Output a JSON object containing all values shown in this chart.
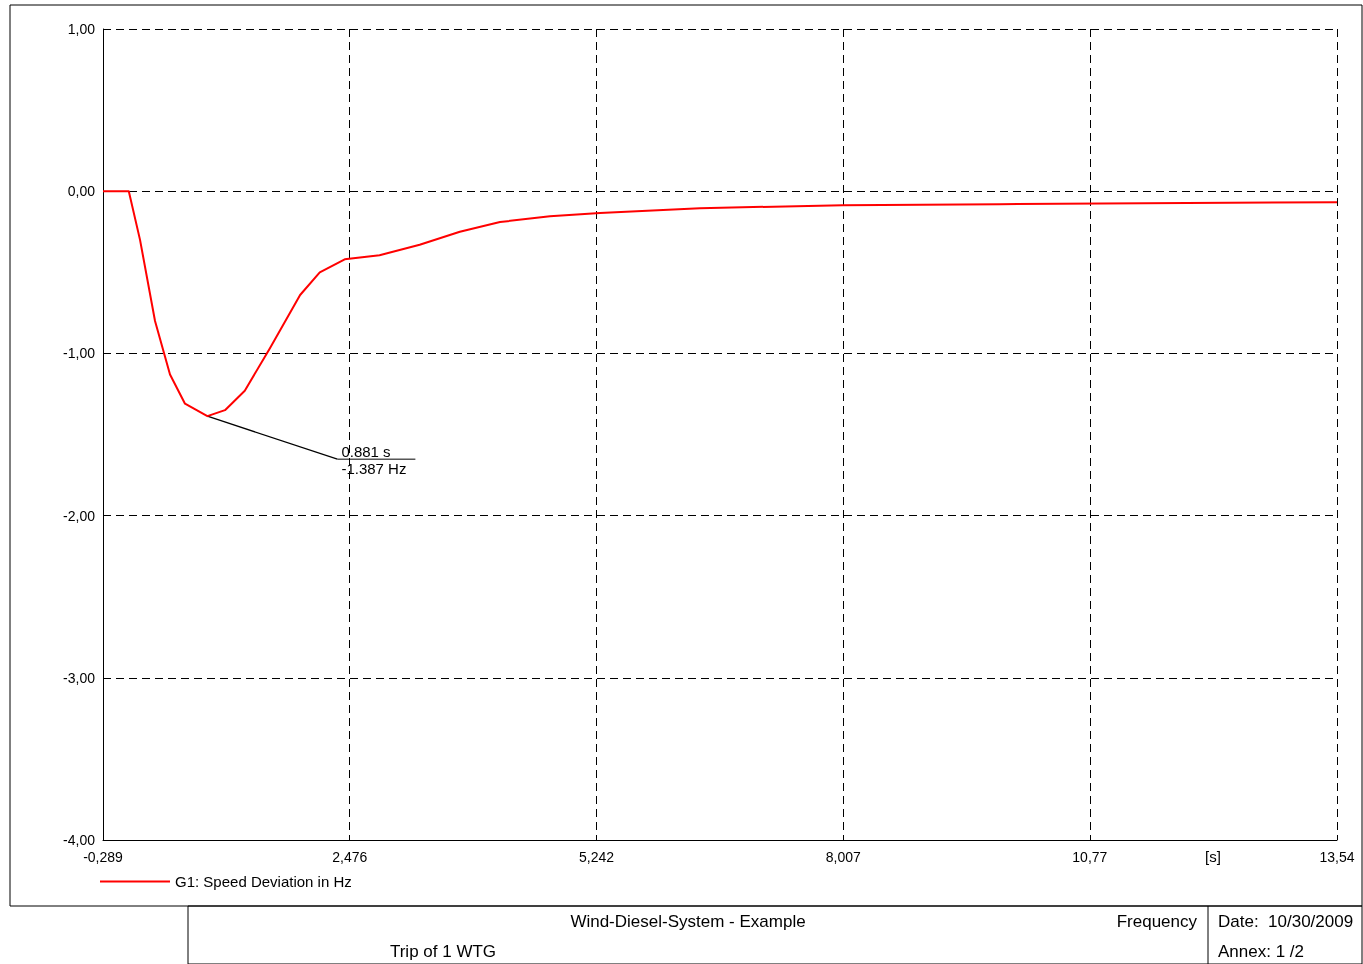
{
  "chart_data": {
    "type": "line",
    "title": "Wind-Diesel-System - Example",
    "subtitle": "Trip of 1 WTG",
    "xlabel": "[s]",
    "x": [
      -0.289,
      0.0,
      0.126,
      0.294,
      0.462,
      0.63,
      0.881,
      1.078,
      1.3,
      1.58,
      1.92,
      2.14,
      2.42,
      2.81,
      3.26,
      3.71,
      4.16,
      4.72,
      5.28,
      6.4,
      8.0,
      9.76,
      13.54
    ],
    "series": [
      {
        "name": "G1: Speed Deviation in Hz",
        "color": "#ff0000",
        "values": [
          0,
          0,
          -0.3,
          -0.8,
          -1.13,
          -1.31,
          -1.387,
          -1.35,
          -1.23,
          -0.97,
          -0.64,
          -0.5,
          -0.42,
          -0.395,
          -0.33,
          -0.25,
          -0.19,
          -0.155,
          -0.135,
          -0.105,
          -0.086,
          -0.08,
          -0.068
        ]
      }
    ],
    "xlim": [
      -0.289,
      13.54
    ],
    "xticks": [
      {
        "value": -0.289,
        "label": "-0,289"
      },
      {
        "value": 2.476,
        "label": "2,476"
      },
      {
        "value": 5.242,
        "label": "5,242"
      },
      {
        "value": 8.007,
        "label": "8,007"
      },
      {
        "value": 10.77,
        "label": "10,77"
      },
      {
        "value": 13.54,
        "label": "13,54"
      }
    ],
    "ylim": [
      -4,
      1
    ],
    "yticks": [
      {
        "value": -4,
        "label": "-4,00"
      },
      {
        "value": -3,
        "label": "-3,00"
      },
      {
        "value": -2,
        "label": "-2,00"
      },
      {
        "value": -1,
        "label": "-1,00"
      },
      {
        "value": 0,
        "label": "0,00"
      },
      {
        "value": 1,
        "label": "1,00"
      }
    ],
    "grid": true,
    "line_style": "solid",
    "marker": "none",
    "legend": "bottom left",
    "annotations": [
      {
        "text": "0.881 s\n-1.387 Hz",
        "x": 0.881,
        "y": -1.387
      },
      "Frequency",
      "Date:  10/30/2009",
      "Annex: 1 /2"
    ]
  }
}
